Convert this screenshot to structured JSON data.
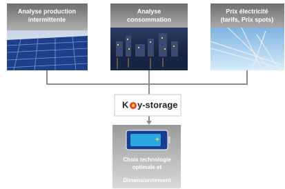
{
  "inputs": [
    {
      "label_lines": [
        "Analyse production",
        "intermittente"
      ]
    },
    {
      "label_lines": [
        "Analyse",
        "consommation"
      ]
    },
    {
      "label_lines": [
        "Prix électricité",
        "(tarifs, Prix spots)"
      ]
    }
  ],
  "logo": {
    "prefix": "K",
    "suffix": "y-storage"
  },
  "output": {
    "label_lines": [
      "Choix technologie",
      "optimale et",
      "Dimensionnement"
    ]
  }
}
